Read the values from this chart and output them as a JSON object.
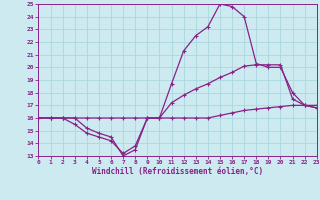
{
  "xlabel": "Windchill (Refroidissement éolien,°C)",
  "bg_color": "#cdeaf0",
  "grid_color": "#aad8e0",
  "line_color": "#882288",
  "ylim": [
    13,
    25
  ],
  "xlim": [
    0,
    23
  ],
  "yticks": [
    13,
    14,
    15,
    16,
    17,
    18,
    19,
    20,
    21,
    22,
    23,
    24,
    25
  ],
  "xticks": [
    0,
    1,
    2,
    3,
    4,
    5,
    6,
    7,
    8,
    9,
    10,
    11,
    12,
    13,
    14,
    15,
    16,
    17,
    18,
    19,
    20,
    21,
    22,
    23
  ],
  "line1_x": [
    0,
    1,
    2,
    3,
    4,
    5,
    6,
    7,
    8,
    9,
    10,
    11,
    12,
    13,
    14,
    15,
    16,
    17,
    18,
    19,
    20,
    21,
    22,
    23
  ],
  "line1_y": [
    16,
    16,
    16,
    16,
    15.2,
    14.8,
    14.5,
    13.0,
    13.5,
    16,
    16,
    18.7,
    21.3,
    22.5,
    23.2,
    25.0,
    24.8,
    24.0,
    20.3,
    20.0,
    20.0,
    18.0,
    17.0,
    16.8
  ],
  "line2_x": [
    0,
    1,
    2,
    3,
    4,
    5,
    6,
    7,
    8,
    9,
    10,
    11,
    12,
    13,
    14,
    15,
    16,
    17,
    18,
    19,
    20,
    21,
    22,
    23
  ],
  "line2_y": [
    16,
    16,
    16,
    15.5,
    14.8,
    14.5,
    14.2,
    13.2,
    13.8,
    16,
    16,
    17.2,
    17.8,
    18.3,
    18.7,
    19.2,
    19.6,
    20.1,
    20.2,
    20.2,
    20.2,
    17.5,
    17.0,
    16.8
  ],
  "line3_x": [
    0,
    1,
    2,
    3,
    4,
    5,
    6,
    7,
    8,
    9,
    10,
    11,
    12,
    13,
    14,
    15,
    16,
    17,
    18,
    19,
    20,
    21,
    22,
    23
  ],
  "line3_y": [
    16,
    16,
    16,
    16,
    16,
    16,
    16,
    16,
    16,
    16,
    16,
    16,
    16,
    16,
    16,
    16.2,
    16.4,
    16.6,
    16.7,
    16.8,
    16.9,
    17.0,
    17.0,
    17.0
  ]
}
